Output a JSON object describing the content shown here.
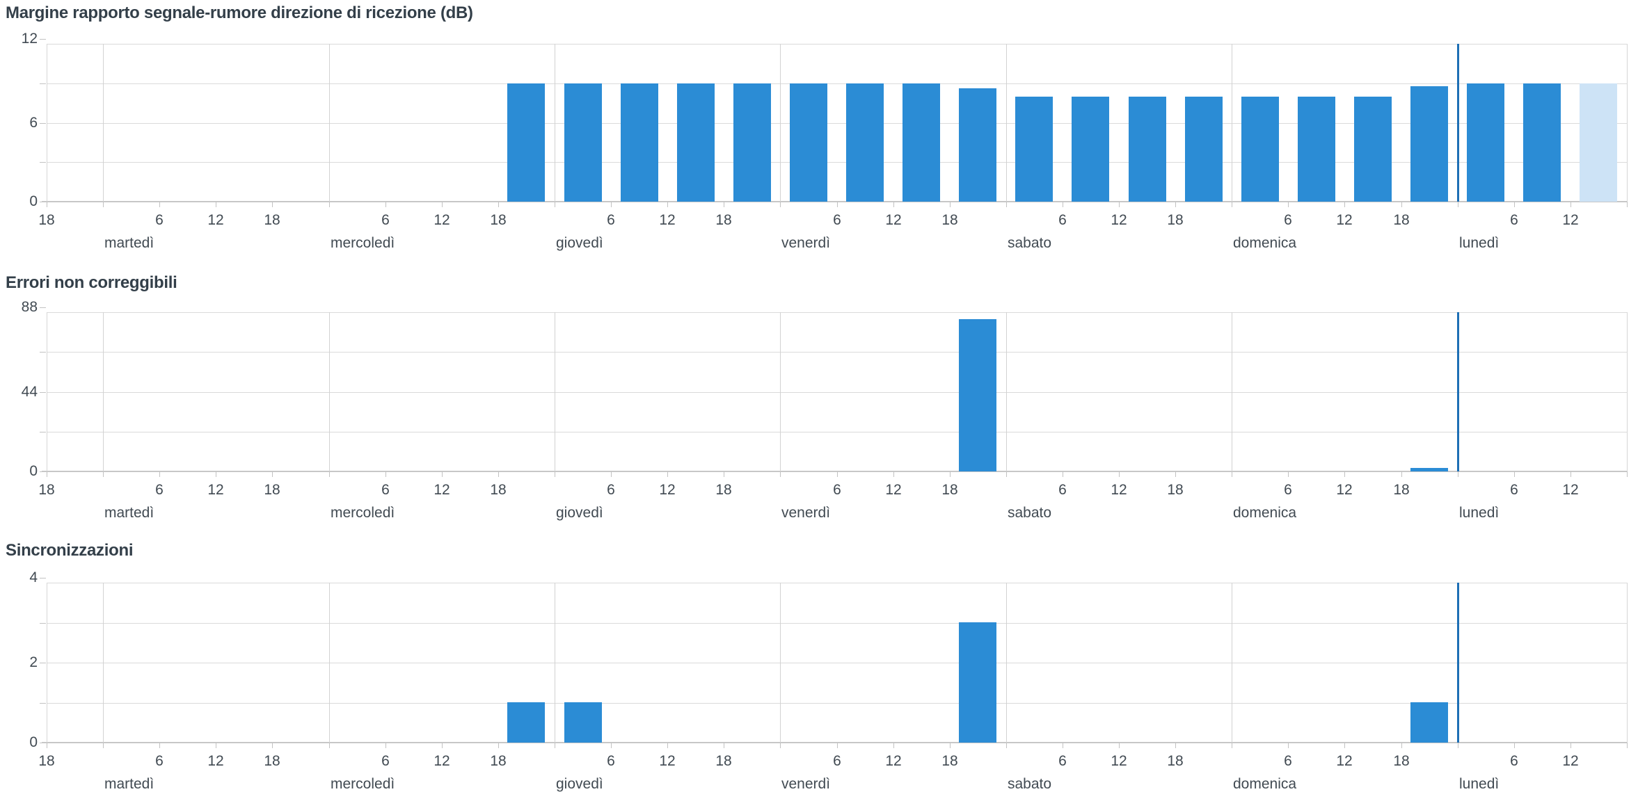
{
  "page_background": "#ffffff",
  "colors": {
    "bar": "#2b8cd5",
    "bar_current_period": "#cde3f6",
    "sync_event_line": "#1d6fb5",
    "gridline": "#dadada",
    "axis_line": "#c7c7c7",
    "title_text": "#333f49",
    "label_text": "#414a52"
  },
  "axis": {
    "days": [
      "martedì",
      "mercoledì",
      "giovedì",
      "venerdì",
      "sabato",
      "domenica",
      "lunedì"
    ],
    "left_edge_hour_label": "18",
    "hour_tick_labels": [
      "6",
      "12",
      "18"
    ]
  },
  "chart_data": [
    {
      "type": "bar",
      "title": "Margine rapporto segnale-rumore direzione di ricezione (dB)",
      "ylabel": "",
      "xlabel": "",
      "ylim": [
        0,
        12
      ],
      "grid": true,
      "y_gridline_values": [
        12,
        9,
        6,
        3,
        0
      ],
      "y_tick_labels": [
        12,
        6,
        0
      ],
      "x_categories_days": [
        "martedì",
        "mercoledì",
        "giovedì",
        "venerdì",
        "sabato",
        "domenica",
        "lunedì"
      ],
      "bars": [
        {
          "day": "mercoledì",
          "hour": 21,
          "value": 9
        },
        {
          "day": "giovedì",
          "hour": 3,
          "value": 9
        },
        {
          "day": "giovedì",
          "hour": 9,
          "value": 9
        },
        {
          "day": "giovedì",
          "hour": 15,
          "value": 9
        },
        {
          "day": "giovedì",
          "hour": 21,
          "value": 9
        },
        {
          "day": "venerdì",
          "hour": 3,
          "value": 9
        },
        {
          "day": "venerdì",
          "hour": 9,
          "value": 9
        },
        {
          "day": "venerdì",
          "hour": 15,
          "value": 9
        },
        {
          "day": "venerdì",
          "hour": 21,
          "value": 8.6
        },
        {
          "day": "sabato",
          "hour": 3,
          "value": 8
        },
        {
          "day": "sabato",
          "hour": 9,
          "value": 8
        },
        {
          "day": "sabato",
          "hour": 15,
          "value": 8
        },
        {
          "day": "sabato",
          "hour": 21,
          "value": 8
        },
        {
          "day": "domenica",
          "hour": 3,
          "value": 8
        },
        {
          "day": "domenica",
          "hour": 9,
          "value": 8
        },
        {
          "day": "domenica",
          "hour": 15,
          "value": 8
        },
        {
          "day": "domenica",
          "hour": 21,
          "value": 8.8
        },
        {
          "day": "lunedì",
          "hour": 3,
          "value": 9
        },
        {
          "day": "lunedì",
          "hour": 9,
          "value": 9
        },
        {
          "day": "lunedì",
          "hour": 15,
          "value": 9,
          "current": true
        }
      ],
      "event_line": {
        "day": "lunedì",
        "hour": 0
      }
    },
    {
      "type": "bar",
      "title": "Errori non correggibili",
      "ylabel": "",
      "xlabel": "",
      "ylim": [
        0,
        88
      ],
      "grid": true,
      "y_gridline_values": [
        88,
        66,
        44,
        22,
        0
      ],
      "y_tick_labels": [
        88,
        44,
        0
      ],
      "x_categories_days": [
        "martedì",
        "mercoledì",
        "giovedì",
        "venerdì",
        "sabato",
        "domenica",
        "lunedì"
      ],
      "bars": [
        {
          "day": "venerdì",
          "hour": 21,
          "value": 84
        },
        {
          "day": "domenica",
          "hour": 21,
          "value": 2
        }
      ],
      "event_line": {
        "day": "lunedì",
        "hour": 0
      }
    },
    {
      "type": "bar",
      "title": "Sincronizzazioni",
      "ylabel": "",
      "xlabel": "",
      "ylim": [
        0,
        4
      ],
      "grid": true,
      "y_gridline_values": [
        4,
        3,
        2,
        1,
        0
      ],
      "y_tick_labels": [
        4,
        2,
        0
      ],
      "x_categories_days": [
        "martedì",
        "mercoledì",
        "giovedì",
        "venerdì",
        "sabato",
        "domenica",
        "lunedì"
      ],
      "bars": [
        {
          "day": "mercoledì",
          "hour": 21,
          "value": 1
        },
        {
          "day": "giovedì",
          "hour": 3,
          "value": 1
        },
        {
          "day": "venerdì",
          "hour": 21,
          "value": 3
        },
        {
          "day": "domenica",
          "hour": 21,
          "value": 1
        }
      ],
      "event_line": {
        "day": "lunedì",
        "hour": 0
      }
    }
  ]
}
